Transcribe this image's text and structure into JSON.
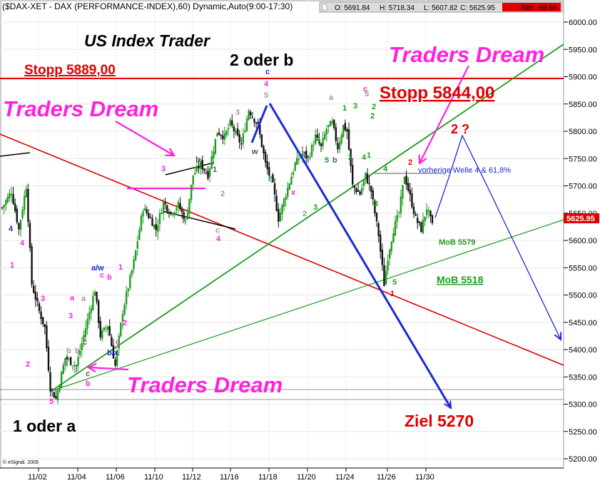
{
  "header": {
    "symbol_line": "($DAX-XET - DAX (PERFORMANCE-INDEX),60) Dynamic,Auto(9:00-17:30)",
    "open": "O: 5691.84",
    "high": "H: 5718.34",
    "low": "L: 5607.82",
    "close": "C: 5625.95",
    "net": "Net: -59.66"
  },
  "copyright": "© eSignal, 2009",
  "annotations": {
    "title": "US Index Trader",
    "stopp1": "Stopp 5889,00",
    "stopp2": "Stopp 5844,00",
    "dream1": "Traders Dream",
    "dream2": "Traders Dream",
    "dream3": "Traders Dream",
    "wave_2b": "2 oder b",
    "wave_1a": "1 oder a",
    "ziel": "Ziel 5270",
    "mob1": "MoB 5579",
    "mob2": "MoB 5518",
    "vorherige": "vorherige Welle 4 & 61,8%",
    "q2": "2 ?"
  },
  "colors": {
    "dream": "#ff22dd",
    "stop_line": "#e00000",
    "trend_green": "#1e9b1e",
    "target_blue": "#1a2ad6",
    "candle_up": "#1e9b1e",
    "candle_down": "#111111",
    "last_price_bg": "#e00000"
  },
  "chart_data": {
    "type": "candlestick",
    "y_axis": {
      "min": 5180,
      "max": 6020,
      "ticks": [
        "6000.00",
        "5950.00",
        "5900.00",
        "5850.00",
        "5800.00",
        "5750.00",
        "5700.00",
        "5650.00",
        "5600.00",
        "5550.00",
        "5500.00",
        "5450.00",
        "5400.00",
        "5350.00",
        "5300.00",
        "5250.00",
        "5200.00"
      ],
      "last_price_label": "5625.95"
    },
    "x_axis": {
      "ticks": [
        "11/02",
        "11/04",
        "11/06",
        "11/10",
        "11/12",
        "11/16",
        "11/18",
        "11/20",
        "11/24",
        "11/26",
        "11/30"
      ]
    },
    "path": [
      [
        0,
        5660
      ],
      [
        5,
        5690
      ],
      [
        9,
        5620
      ],
      [
        13,
        5700
      ],
      [
        16,
        5520
      ],
      [
        20,
        5470
      ],
      [
        23,
        5440
      ],
      [
        26,
        5330
      ],
      [
        29,
        5310
      ],
      [
        34,
        5385
      ],
      [
        40,
        5370
      ],
      [
        45,
        5440
      ],
      [
        50,
        5510
      ],
      [
        53,
        5425
      ],
      [
        57,
        5445
      ],
      [
        61,
        5370
      ],
      [
        65,
        5470
      ],
      [
        71,
        5560
      ],
      [
        76,
        5660
      ],
      [
        80,
        5640
      ],
      [
        83,
        5620
      ],
      [
        87,
        5670
      ],
      [
        91,
        5650
      ],
      [
        95,
        5665
      ],
      [
        99,
        5635
      ],
      [
        103,
        5720
      ],
      [
        107,
        5740
      ],
      [
        111,
        5720
      ],
      [
        116,
        5800
      ],
      [
        120,
        5790
      ],
      [
        123,
        5815
      ],
      [
        129,
        5775
      ],
      [
        133,
        5840
      ],
      [
        138,
        5810
      ],
      [
        142,
        5740
      ],
      [
        146,
        5700
      ],
      [
        149,
        5640
      ],
      [
        153,
        5685
      ],
      [
        158,
        5740
      ],
      [
        162,
        5760
      ],
      [
        165,
        5750
      ],
      [
        169,
        5790
      ],
      [
        172,
        5770
      ],
      [
        175,
        5805
      ],
      [
        178,
        5815
      ],
      [
        181,
        5770
      ],
      [
        184,
        5810
      ],
      [
        186,
        5800
      ],
      [
        189,
        5700
      ],
      [
        193,
        5685
      ],
      [
        196,
        5720
      ],
      [
        199,
        5690
      ],
      [
        203,
        5610
      ],
      [
        206,
        5520
      ],
      [
        208,
        5570
      ],
      [
        211,
        5620
      ],
      [
        214,
        5650
      ],
      [
        217,
        5720
      ],
      [
        220,
        5680
      ],
      [
        223,
        5640
      ],
      [
        226,
        5620
      ],
      [
        229,
        5660
      ],
      [
        232,
        5626
      ]
    ],
    "wave_labels": [
      "4",
      "1",
      "4",
      "3",
      "2",
      "3",
      "a",
      "b",
      "a",
      "b",
      "c",
      "a/w",
      "b",
      "c",
      "1",
      "2",
      "c",
      "b/x",
      "c",
      "b",
      "5",
      "3",
      "b",
      "1",
      "2",
      "a",
      "c",
      "4",
      "3",
      "4",
      "5",
      "c",
      "w",
      "1",
      "x",
      "2",
      "3",
      "4",
      "5",
      "a",
      "b",
      "1",
      "2",
      "3",
      "4",
      "5",
      "c",
      "2",
      "3",
      "4",
      "5",
      "1",
      "2",
      "1",
      "2"
    ]
  }
}
